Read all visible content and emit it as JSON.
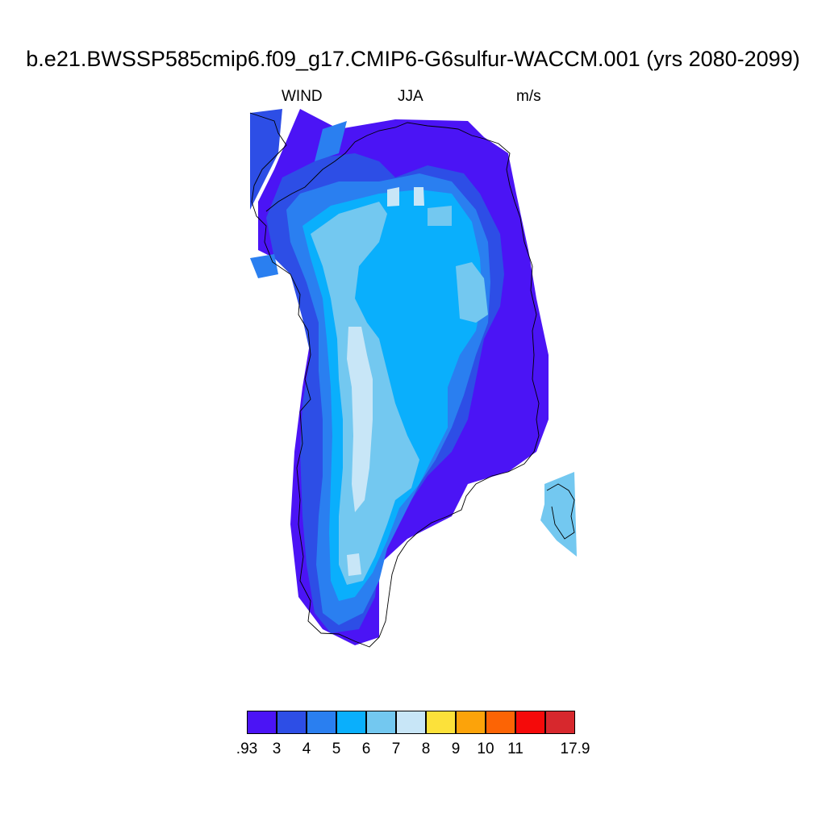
{
  "title": "b.e21.BWSSP585cmip6.f09_g17.CMIP6-G6sulfur-WACCM.001 (yrs 2080-2099)",
  "subtitle": {
    "variable": "WIND",
    "season": "JJA",
    "units": "m/s"
  },
  "colorbar": {
    "colors": [
      "#4b14f5",
      "#2d4ee6",
      "#2a7ff0",
      "#0aaffc",
      "#73c8f0",
      "#c8e6f7",
      "#fce13a",
      "#fca30a",
      "#fc6405",
      "#f50a0a",
      "#d7282d"
    ],
    "labels": [
      ".93",
      "3",
      "4",
      "5",
      "6",
      "7",
      "8",
      "9",
      "10",
      "11",
      "",
      "17.9"
    ]
  },
  "map": {
    "region": "Greenland",
    "levels": [
      {
        "color": "#4b14f5",
        "polygons": [
          "372,135 420,160 490,148 580,150 600,170 630,190 640,240 655,310 665,370 680,440 680,520 665,560 630,585 580,600 560,640 505,668 470,700 470,790 440,800 400,780 370,740 360,650 365,560 375,480 385,420 380,380 360,330 320,310 320,250 340,210"
        ]
      },
      {
        "color": "#2d4ee6",
        "polygons": [
          "310,140 350,135 345,190 310,260",
          "350,220 400,195 440,190 470,200 490,220 530,205 575,215 595,240 620,290 625,340 620,380 600,420 590,470 580,520 560,560 530,590 510,620 490,650 470,690 465,740 445,780 410,785 390,760 380,700 375,640 372,560 375,500 385,440 375,395 360,340 340,320 330,270"
        ]
      },
      {
        "color": "#2a7ff0",
        "polygons": [
          "400,160 430,150 420,190 390,200",
          "372,240 420,225 470,225 520,215 560,225 590,260 605,300 608,350 605,400 590,440 575,490 560,530 540,570 520,600 500,640 480,680 470,720 450,760 420,775 400,760 392,700 395,640 400,590 400,520 395,460 395,400 380,350 360,300 355,260",
          "310,320 340,315 345,340 320,345"
        ]
      },
      {
        "color": "#0aaffc",
        "polygons": [
          "375,280 410,255 470,240 520,235 560,240 585,275 595,320 598,370 590,410 570,440 555,480 555,530 540,560 520,600 495,630 480,670 462,710 440,740 420,745 410,720 408,660 410,600 412,540 410,480 405,420 400,370 385,320"
        ]
      },
      {
        "color": "#73c8f0",
        "polygons": [
          "385,290 420,265 470,250 480,265 470,300 445,330 440,370 455,400 470,420 480,460 490,500 505,540 520,570 510,605 490,620 480,650 465,690 450,720 430,725 420,700 420,640 425,580 425,520 420,470 418,420 410,370 400,330",
          "565,330 585,325 600,345 605,390 590,400 570,395",
          "530,258 560,255 560,280 530,280",
          "675,600 712,585 715,690 690,670 670,645 675,625"
        ]
      },
      {
        "color": "#c8e6f7",
        "polygons": [
          "432,405 448,405 455,440 462,470 462,520 458,580 452,620 440,635 436,600 438,540 436,480 430,445",
          "430,688 445,686 448,712 432,714",
          "480,235 495,232 495,255 480,256",
          "513,232 525,232 526,255 513,255"
        ]
      }
    ],
    "coastlines": [
      "310,140 340,150 345,165 355,180 340,195 325,210 315,230 312,250 318,268 330,280 328,300 338,325 360,340 372,365 370,390 382,410 385,440 378,470 385,495 372,510 375,550 368,580 372,620 370,650 376,690 372,720 385,745 382,770 398,785 420,786 440,795 458,802 470,790 478,770 482,740 486,712 493,690 505,672 518,660 535,648 555,640 572,632 578,615 590,600 610,590 630,585 650,575 662,560 668,540 665,520 668,500 660,470 662,440 660,410 665,390 658,360 660,330 650,300 645,270 638,250 632,230 628,210 632,190 618,178 600,172 585,168 568,160 552,158 530,156 505,152 490,158 470,162 455,168 440,176 428,190 415,200 400,210 390,220 378,232 362,240 345,250 330,262",
      "678,608 692,600 705,608 712,620 708,640 712,660 700,668 688,650 684,628"
    ]
  }
}
